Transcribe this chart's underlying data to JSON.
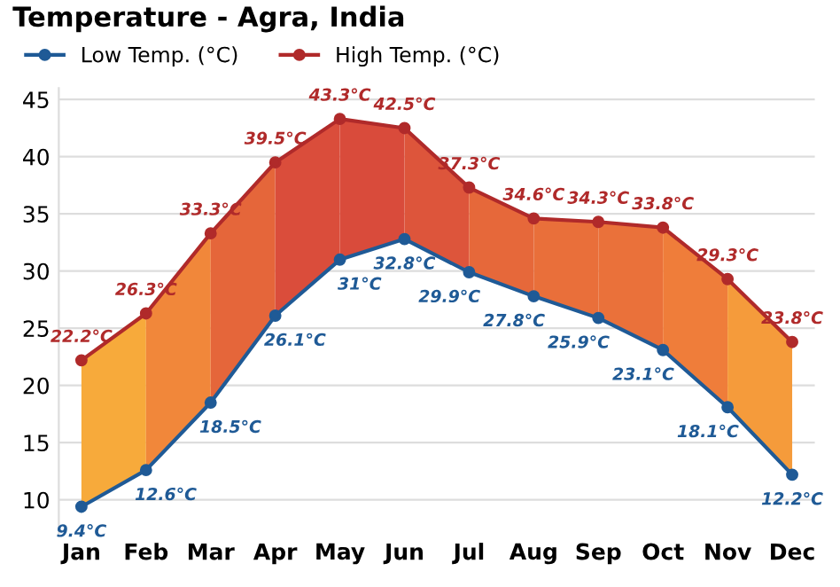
{
  "chart_data": {
    "type": "line",
    "title": "Temperature - Agra, India",
    "categories": [
      "Jan",
      "Feb",
      "Mar",
      "Apr",
      "May",
      "Jun",
      "Jul",
      "Aug",
      "Sep",
      "Oct",
      "Nov",
      "Dec"
    ],
    "series": [
      {
        "name": "Low Temp. (°C)",
        "color": "#1f5a96",
        "values": [
          9.4,
          12.6,
          18.5,
          26.1,
          31,
          32.8,
          29.9,
          27.8,
          25.9,
          23.1,
          18.1,
          12.2
        ],
        "value_labels": [
          "9.4°C",
          "12.6°C",
          "18.5°C",
          "26.1°C",
          "31°C",
          "32.8°C",
          "29.9°C",
          "27.8°C",
          "25.9°C",
          "23.1°C",
          "18.1°C",
          "12.2°C"
        ]
      },
      {
        "name": "High Temp. (°C)",
        "color": "#b02a2a",
        "values": [
          22.2,
          26.3,
          33.3,
          39.5,
          43.3,
          42.5,
          37.3,
          34.6,
          34.3,
          33.8,
          29.3,
          23.8
        ],
        "value_labels": [
          "22.2°C",
          "26.3°C",
          "33.3°C",
          "39.5°C",
          "43.3°C",
          "42.5°C",
          "37.3°C",
          "34.6°C",
          "34.3°C",
          "33.8°C",
          "29.3°C",
          "23.8°C"
        ]
      }
    ],
    "ylim": [
      7,
      46
    ],
    "yticks": [
      10,
      15,
      20,
      25,
      30,
      35,
      40,
      45
    ],
    "grid": "y",
    "legend": "top left",
    "marker": "circle",
    "line_style": "solid"
  }
}
